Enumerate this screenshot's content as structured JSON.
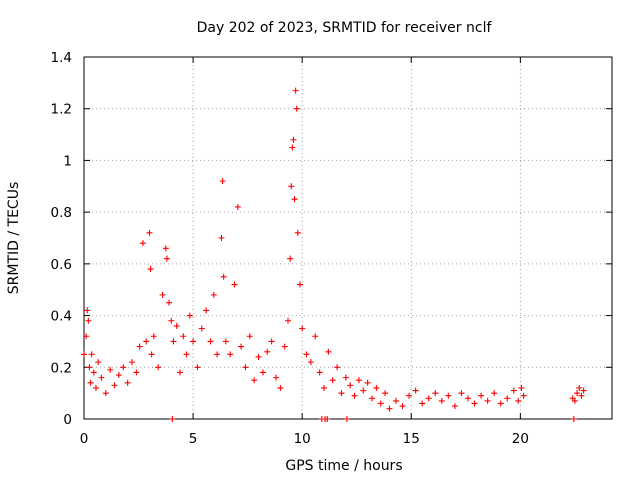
{
  "chart_data": {
    "type": "scatter",
    "title": "Day 202 of 2023, SRMTID for receiver nclf",
    "xlabel": "GPS time / hours",
    "ylabel": "SRMTID / TECUs",
    "xlim": [
      0,
      24.2
    ],
    "ylim": [
      0,
      1.4
    ],
    "x_ticks": [
      0,
      5,
      10,
      15,
      20
    ],
    "x_tick_labels": [
      "0",
      "5",
      "10",
      "15",
      "20"
    ],
    "y_ticks": [
      0,
      0.2,
      0.4,
      0.6,
      0.8,
      1.0,
      1.2,
      1.4
    ],
    "y_tick_labels": [
      "0",
      "0.2",
      "0.4",
      "0.6",
      "0.8",
      "1",
      "1.2",
      "1.4"
    ],
    "grid": true,
    "series": [
      {
        "name": "SRMTID",
        "marker": "+",
        "color": "#ff0000",
        "x": [
          0.0,
          0.1,
          0.15,
          0.2,
          0.25,
          0.3,
          0.35,
          0.45,
          0.55,
          0.65,
          0.8,
          1.0,
          1.2,
          1.4,
          1.6,
          1.8,
          2.0,
          2.2,
          2.4,
          2.55,
          2.7,
          2.85,
          3.0,
          3.05,
          3.1,
          3.2,
          3.4,
          3.6,
          3.75,
          3.8,
          3.9,
          4.0,
          4.1,
          4.25,
          4.4,
          4.55,
          4.7,
          4.85,
          5.0,
          5.2,
          5.4,
          5.6,
          5.8,
          5.95,
          6.1,
          6.3,
          6.35,
          6.4,
          6.5,
          6.7,
          6.9,
          7.05,
          7.2,
          7.4,
          7.6,
          7.8,
          8.0,
          8.2,
          8.4,
          8.6,
          8.8,
          9.0,
          9.2,
          9.35,
          9.45,
          9.5,
          9.55,
          9.6,
          9.65,
          9.7,
          9.75,
          9.8,
          9.9,
          10.0,
          10.2,
          10.4,
          10.6,
          10.8,
          11.0,
          11.2,
          11.4,
          11.6,
          11.8,
          12.0,
          12.2,
          12.4,
          12.6,
          12.8,
          13.0,
          13.2,
          13.4,
          13.6,
          13.8,
          14.0,
          14.3,
          14.6,
          14.9,
          15.2,
          15.5,
          15.8,
          16.1,
          16.4,
          16.7,
          17.0,
          17.3,
          17.6,
          17.9,
          18.2,
          18.5,
          18.8,
          19.1,
          19.4,
          19.7,
          19.9,
          20.05,
          20.15,
          22.4,
          22.5,
          22.6,
          22.7,
          22.8,
          22.9,
          4.05,
          10.9,
          11.05,
          11.15,
          12.05,
          22.45
        ],
        "y": [
          0.25,
          0.32,
          0.42,
          0.38,
          0.2,
          0.14,
          0.25,
          0.18,
          0.12,
          0.22,
          0.16,
          0.1,
          0.19,
          0.13,
          0.17,
          0.2,
          0.14,
          0.22,
          0.18,
          0.28,
          0.68,
          0.3,
          0.72,
          0.58,
          0.25,
          0.32,
          0.2,
          0.48,
          0.66,
          0.62,
          0.45,
          0.38,
          0.3,
          0.36,
          0.18,
          0.32,
          0.25,
          0.4,
          0.3,
          0.2,
          0.35,
          0.42,
          0.3,
          0.48,
          0.25,
          0.7,
          0.92,
          0.55,
          0.3,
          0.25,
          0.52,
          0.82,
          0.28,
          0.2,
          0.32,
          0.15,
          0.24,
          0.18,
          0.26,
          0.3,
          0.16,
          0.12,
          0.28,
          0.38,
          0.62,
          0.9,
          1.05,
          1.08,
          0.85,
          1.27,
          1.2,
          0.72,
          0.52,
          0.35,
          0.25,
          0.22,
          0.32,
          0.18,
          0.12,
          0.26,
          0.15,
          0.2,
          0.1,
          0.16,
          0.13,
          0.09,
          0.15,
          0.11,
          0.14,
          0.08,
          0.12,
          0.06,
          0.1,
          0.04,
          0.07,
          0.05,
          0.09,
          0.11,
          0.06,
          0.08,
          0.1,
          0.07,
          0.09,
          0.05,
          0.1,
          0.08,
          0.06,
          0.09,
          0.07,
          0.1,
          0.06,
          0.08,
          0.11,
          0.07,
          0.12,
          0.09,
          0.08,
          0.07,
          0.1,
          0.12,
          0.09,
          0.11,
          0.0,
          0.0,
          0.0,
          0.0,
          0.0,
          0.0
        ]
      }
    ]
  }
}
